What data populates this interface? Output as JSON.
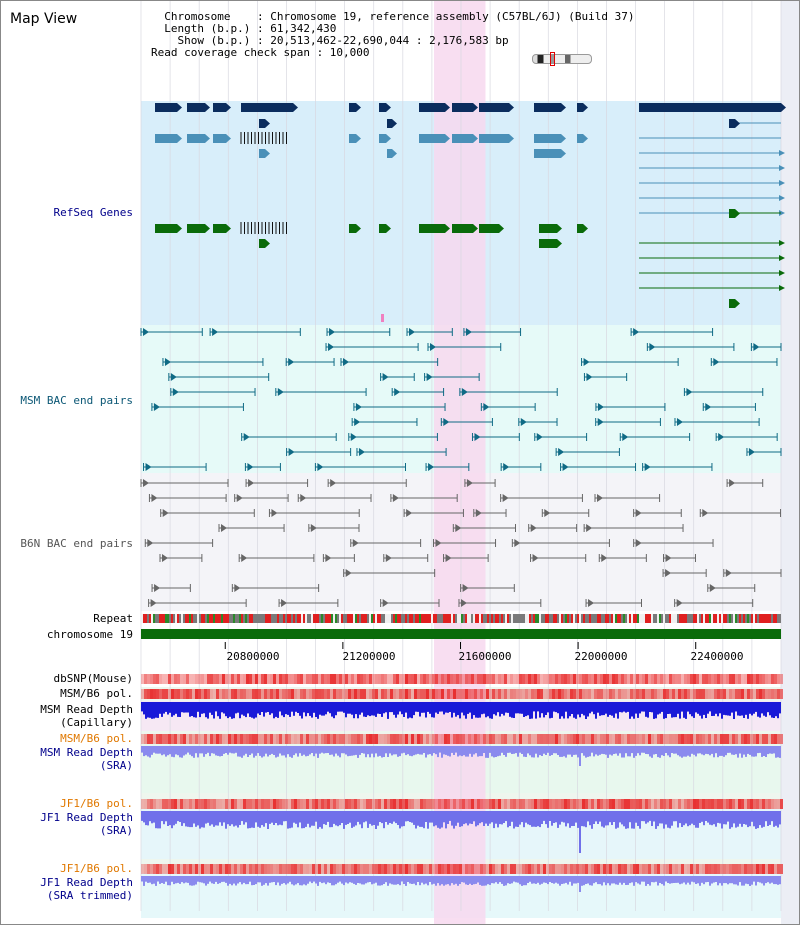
{
  "view": {
    "title": "Map View",
    "info_lines": [
      "  Chromosome    : Chromosome 19, reference assembly (C57BL/6J) (Build 37)",
      "  Length (b.p.) : 61,342,430",
      "    Show (b.p.) : 20,513,462-22,690,044 : 2,176,583 bp",
      "Read coverage check span : 10,000"
    ]
  },
  "tracks": {
    "refseq": "RefSeq Genes",
    "msm_bac": "MSM BAC end pairs",
    "b6n_bac": "B6N BAC end pairs",
    "repeat": "Repeat",
    "chrom": "chromosome 19",
    "dbsnp": "dbSNP(Mouse)",
    "msm_pol_1": "MSM/B6 pol.",
    "msm_depth_cap_1": "MSM Read Depth",
    "msm_depth_cap_2": "(Capillary)",
    "msm_pol_2": "MSM/B6 pol.",
    "msm_depth_sra_1": "MSM Read Depth",
    "msm_depth_sra_2": "(SRA)",
    "jf1_pol_1": "JF1/B6 pol.",
    "jf1_depth_sra_1": "JF1 Read Depth",
    "jf1_depth_sra_2": "(SRA)",
    "jf1_pol_2": "JF1/B6 pol.",
    "jf1_depth_trim_1": "JF1 Read Depth",
    "jf1_depth_trim_2": "(SRA trimmed)"
  },
  "axis": {
    "start": 20513462,
    "end": 22690044,
    "ticks": [
      "20800000",
      "21200000",
      "21600000",
      "22000000",
      "22400000"
    ],
    "tick_values": [
      20800000,
      21200000,
      21600000,
      22000000,
      22400000
    ],
    "highlight_start": 21510000,
    "highlight_end": 21685000
  },
  "colors": {
    "refseq_bg": "#d8eefa",
    "bac_bg": "#e6faf8",
    "highlight": "#f7d8ef",
    "gene_navy": "#0b2d5e",
    "gene_steel": "#4a90b8",
    "gene_green": "#0a6b0a",
    "msm_pair": "#0f6a85",
    "b6n_pair": "#666666",
    "chromosome": "#0a6b0a",
    "snp": "#e83030",
    "depth_dark": "#1a1ad8",
    "depth_light": "#8a8aee"
  }
}
